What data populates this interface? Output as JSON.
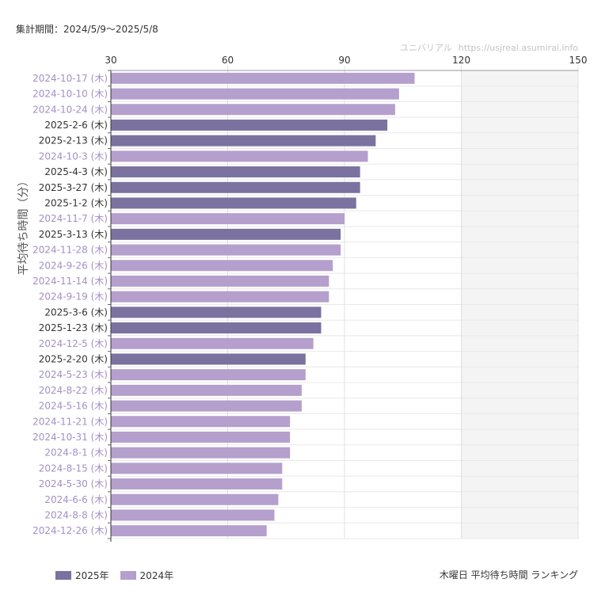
{
  "period": "集計期間：2024/5/9〜2025/5/8",
  "watermark": {
    "site_name": "ユニバリアル",
    "url": "https://usjreal.asumirai.info"
  },
  "chart_data": {
    "type": "bar",
    "orientation": "horizontal",
    "title": "木曜日 平均待ち時間 ランキング",
    "ylabel": "平均待ち時間（分）",
    "xlim": [
      30,
      150
    ],
    "xticks": [
      30,
      60,
      90,
      120,
      150
    ],
    "shaded_range": [
      120,
      150
    ],
    "legend": [
      {
        "name": "2025年",
        "color": "#7b72a0"
      },
      {
        "name": "2024年",
        "color": "#b59fcc"
      }
    ],
    "colors": {
      "2025": "#7b72a0",
      "2024": "#b59fcc",
      "label_2025": "#333333",
      "label_2024": "#a58fc4"
    },
    "categories": [
      "2024-10-17 (木)",
      "2024-10-10 (木)",
      "2024-10-24 (木)",
      "2025-2-6 (木)",
      "2025-2-13 (木)",
      "2024-10-3 (木)",
      "2025-4-3 (木)",
      "2025-3-27 (木)",
      "2025-1-2 (木)",
      "2024-11-7 (木)",
      "2025-3-13 (木)",
      "2024-11-28 (木)",
      "2024-9-26 (木)",
      "2024-11-14 (木)",
      "2024-9-19 (木)",
      "2025-3-6 (木)",
      "2025-1-23 (木)",
      "2024-12-5 (木)",
      "2025-2-20 (木)",
      "2024-5-23 (木)",
      "2024-8-22 (木)",
      "2024-5-16 (木)",
      "2024-11-21 (木)",
      "2024-10-31 (木)",
      "2024-8-1 (木)",
      "2024-8-15 (木)",
      "2024-5-30 (木)",
      "2024-6-6 (木)",
      "2024-8-8 (木)",
      "2024-12-26 (木)"
    ],
    "values": [
      108,
      104,
      103,
      101,
      98,
      96,
      94,
      94,
      93,
      90,
      89,
      89,
      87,
      86,
      86,
      84,
      84,
      82,
      80,
      80,
      79,
      79,
      76,
      76,
      76,
      74,
      74,
      73,
      72,
      70
    ],
    "year": [
      "2024",
      "2024",
      "2024",
      "2025",
      "2025",
      "2024",
      "2025",
      "2025",
      "2025",
      "2024",
      "2025",
      "2024",
      "2024",
      "2024",
      "2024",
      "2025",
      "2025",
      "2024",
      "2025",
      "2024",
      "2024",
      "2024",
      "2024",
      "2024",
      "2024",
      "2024",
      "2024",
      "2024",
      "2024",
      "2024"
    ]
  }
}
